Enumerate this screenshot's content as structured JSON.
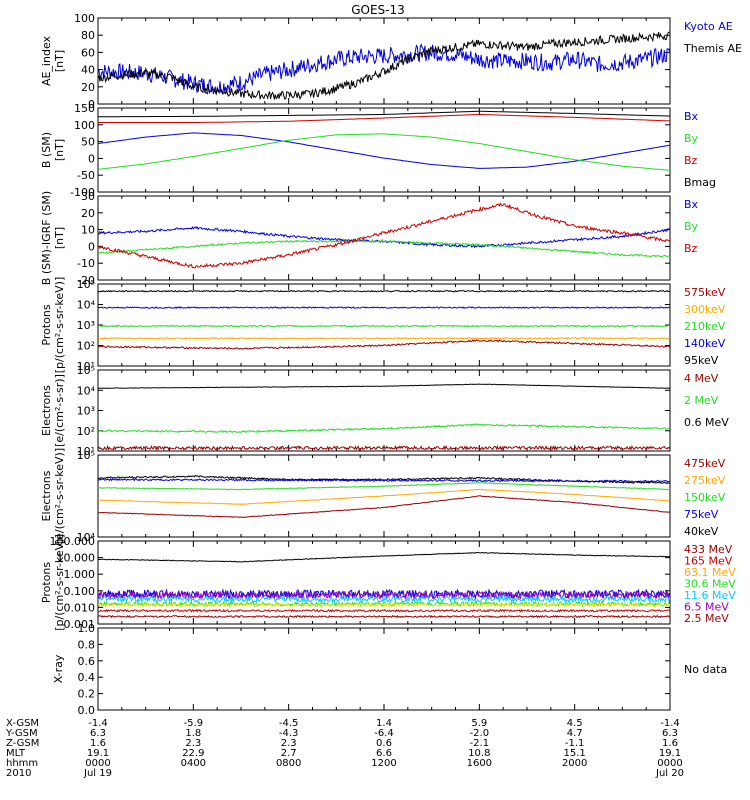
{
  "title": "GOES-13",
  "colors": {
    "black": "#000000",
    "blue": "#0000dd",
    "red": "#cc0000",
    "green": "#22dd22",
    "orange": "#ffaa00",
    "darkred": "#990000",
    "cyan": "#00ccff",
    "yellow": "#eeee00",
    "purple": "#9900cc"
  },
  "chart_data": [
    {
      "type": "line",
      "ylabel": [
        "AE_index",
        "[nT]"
      ],
      "ylim": [
        0,
        100
      ],
      "yticks": [
        "0",
        "20",
        "40",
        "60",
        "80",
        "100"
      ],
      "legend": [
        {
          "label": "Kyoto AE",
          "color": "#0000dd"
        },
        {
          "label": "Themis AE",
          "color": "#000000"
        }
      ],
      "series": [
        {
          "name": "Kyoto AE",
          "color": "#0000dd",
          "x": [
            0,
            1,
            2,
            3,
            4,
            5,
            6,
            7,
            8,
            9,
            10,
            11,
            12,
            13,
            14,
            15,
            16,
            17,
            18,
            19,
            20,
            21,
            22,
            23,
            24
          ],
          "values": [
            38,
            37,
            36,
            30,
            24,
            20,
            25,
            34,
            40,
            46,
            52,
            55,
            56,
            58,
            60,
            58,
            52,
            50,
            50,
            48,
            52,
            46,
            48,
            52,
            58
          ],
          "noise": 10
        },
        {
          "name": "Themis AE",
          "color": "#000000",
          "x": [
            0,
            1,
            2,
            3,
            4,
            5,
            6,
            7,
            8,
            9,
            10,
            11,
            12,
            13,
            14,
            15,
            16,
            17,
            18,
            19,
            20,
            21,
            22,
            23,
            24
          ],
          "values": [
            30,
            34,
            36,
            32,
            20,
            16,
            12,
            10,
            10,
            12,
            18,
            26,
            38,
            52,
            62,
            66,
            70,
            68,
            66,
            70,
            72,
            74,
            76,
            78,
            80
          ],
          "noise": 5
        }
      ]
    },
    {
      "type": "line",
      "ylabel": [
        "B (SM)",
        "[nT]"
      ],
      "ylim": [
        -125,
        135
      ],
      "yticks": [
        "-100",
        "-50",
        "0",
        "50",
        "100",
        "150"
      ],
      "legend": [
        {
          "label": "Bx",
          "color": "#0000dd"
        },
        {
          "label": "By",
          "color": "#22dd22"
        },
        {
          "label": "Bz",
          "color": "#cc0000"
        },
        {
          "label": "Bmag",
          "color": "#000000"
        }
      ],
      "series": [
        {
          "name": "Bmag",
          "color": "#000000",
          "x": [
            0,
            4,
            8,
            12,
            16,
            20,
            24
          ],
          "values": [
            108,
            109,
            112,
            115,
            125,
            118,
            110
          ],
          "noise": 0
        },
        {
          "name": "Bz",
          "color": "#cc0000",
          "x": [
            0,
            4,
            8,
            12,
            16,
            20,
            24
          ],
          "values": [
            90,
            90,
            94,
            104,
            115,
            106,
            95
          ],
          "noise": 0
        },
        {
          "name": "Bx",
          "color": "#0000dd",
          "x": [
            0,
            2,
            4,
            6,
            8,
            10,
            12,
            14,
            16,
            18,
            20,
            22,
            24
          ],
          "values": [
            25,
            45,
            58,
            50,
            30,
            5,
            -20,
            -40,
            -52,
            -48,
            -30,
            -5,
            20
          ],
          "noise": 0
        },
        {
          "name": "By",
          "color": "#22dd22",
          "x": [
            0,
            2,
            4,
            6,
            8,
            10,
            12,
            14,
            16,
            18,
            20,
            22,
            24
          ],
          "values": [
            -55,
            -38,
            -15,
            10,
            35,
            52,
            55,
            45,
            25,
            0,
            -25,
            -45,
            -58
          ],
          "noise": 0
        }
      ]
    },
    {
      "type": "line",
      "ylabel": [
        "B (SM)-IGRF (SM)",
        "[nT]"
      ],
      "ylim": [
        -20,
        30
      ],
      "yticks": [
        "-20",
        "-10",
        "0",
        "10",
        "20",
        "30"
      ],
      "legend": [
        {
          "label": "Bx",
          "color": "#0000dd"
        },
        {
          "label": "By",
          "color": "#22dd22"
        },
        {
          "label": "Bz",
          "color": "#cc0000"
        }
      ],
      "series": [
        {
          "name": "Bx",
          "color": "#0000dd",
          "x": [
            0,
            2,
            4,
            6,
            8,
            10,
            12,
            14,
            16,
            18,
            20,
            22,
            24
          ],
          "values": [
            8,
            9,
            11,
            9,
            6,
            4,
            3,
            1,
            0,
            2,
            4,
            6,
            10
          ],
          "noise": 0.7
        },
        {
          "name": "By",
          "color": "#22dd22",
          "x": [
            0,
            2,
            4,
            6,
            8,
            10,
            12,
            14,
            16,
            18,
            20,
            22,
            24
          ],
          "values": [
            -4,
            -2,
            0,
            2,
            3,
            3,
            3,
            2,
            1,
            -1,
            -3,
            -5,
            -6
          ],
          "noise": 0.5
        },
        {
          "name": "Bz",
          "color": "#cc0000",
          "x": [
            0,
            2,
            4,
            6,
            8,
            10,
            12,
            14,
            16,
            17,
            18,
            20,
            22,
            24
          ],
          "values": [
            0,
            -6,
            -12,
            -10,
            -5,
            1,
            8,
            15,
            22,
            25,
            20,
            12,
            8,
            3
          ],
          "noise": 1
        }
      ]
    },
    {
      "type": "line",
      "log": true,
      "ylabel": [
        "Protons",
        "[p/(cm²-s-sr-keV)]"
      ],
      "ylim": [
        1,
        5
      ],
      "yticks": [
        "10¹",
        "10²",
        "10³",
        "10⁴",
        "10⁵"
      ],
      "legend": [
        {
          "label": "575keV",
          "color": "#990000"
        },
        {
          "label": "300keV",
          "color": "#ffaa00"
        },
        {
          "label": "210keV",
          "color": "#22dd22"
        },
        {
          "label": "140keV",
          "color": "#0000dd"
        },
        {
          "label": "95keV",
          "color": "#000000"
        }
      ],
      "series": [
        {
          "name": "95keV",
          "color": "#000000",
          "x": [
            0,
            24
          ],
          "values": [
            4.65,
            4.65
          ],
          "noise": 0.03
        },
        {
          "name": "140keV",
          "color": "#0000dd",
          "x": [
            0,
            24
          ],
          "values": [
            3.85,
            3.85
          ],
          "noise": 0.03
        },
        {
          "name": "210keV",
          "color": "#22dd22",
          "x": [
            0,
            24
          ],
          "values": [
            2.95,
            2.95
          ],
          "noise": 0.03
        },
        {
          "name": "300keV",
          "color": "#ffaa00",
          "x": [
            0,
            24
          ],
          "values": [
            2.35,
            2.35
          ],
          "noise": 0.03
        },
        {
          "name": "575keV",
          "color": "#990000",
          "x": [
            0,
            6,
            12,
            16,
            20,
            24
          ],
          "values": [
            1.95,
            1.85,
            2.0,
            2.25,
            2.1,
            1.95
          ],
          "noise": 0.04
        }
      ]
    },
    {
      "type": "line",
      "log": true,
      "ylabel": [
        "Electrons",
        "[e/(cm²-s-sr)]"
      ],
      "ylim": [
        1,
        5
      ],
      "yticks": [
        "10¹",
        "10²",
        "10³",
        "10⁴",
        "10⁵"
      ],
      "legend": [
        {
          "label": "4 MeV",
          "color": "#990000"
        },
        {
          "label": "2 MeV",
          "color": "#22dd22"
        },
        {
          "label": "0.6 MeV",
          "color": "#000000"
        }
      ],
      "series": [
        {
          "name": "0.6 MeV",
          "color": "#000000",
          "x": [
            0,
            6,
            12,
            16,
            20,
            24
          ],
          "values": [
            4.1,
            4.15,
            4.2,
            4.3,
            4.2,
            4.1
          ],
          "noise": 0.01
        },
        {
          "name": "2 MeV",
          "color": "#22dd22",
          "x": [
            0,
            6,
            12,
            16,
            20,
            24
          ],
          "values": [
            2.0,
            1.95,
            2.1,
            2.3,
            2.2,
            2.1
          ],
          "noise": 0.04
        },
        {
          "name": "4 MeV",
          "color": "#990000",
          "x": [
            0,
            24
          ],
          "values": [
            1.15,
            1.15
          ],
          "noise": 0.08
        }
      ]
    },
    {
      "type": "line",
      "log": true,
      "ylabel": [
        "Electrons",
        "[e/(cm²-s-sr-keV)]"
      ],
      "ylim": [
        4,
        5
      ],
      "yticks": [
        "10⁴",
        "10⁵"
      ],
      "legend": [
        {
          "label": "475keV",
          "color": "#990000"
        },
        {
          "label": "275keV",
          "color": "#ffaa00"
        },
        {
          "label": "150keV",
          "color": "#22dd22"
        },
        {
          "label": "75keV",
          "color": "#0000dd"
        },
        {
          "label": "40keV",
          "color": "#000000"
        }
      ],
      "series": [
        {
          "name": "40keV",
          "color": "#000000",
          "x": [
            0,
            4,
            8,
            12,
            16,
            20,
            24
          ],
          "values": [
            4.72,
            4.74,
            4.7,
            4.7,
            4.72,
            4.68,
            4.66
          ],
          "noise": 0.01
        },
        {
          "name": "75keV",
          "color": "#0000dd",
          "x": [
            0,
            24
          ],
          "values": [
            4.7,
            4.68
          ],
          "noise": 0.01
        },
        {
          "name": "150keV",
          "color": "#22dd22",
          "x": [
            0,
            6,
            12,
            16,
            20,
            24
          ],
          "values": [
            4.6,
            4.58,
            4.62,
            4.66,
            4.62,
            4.58
          ],
          "noise": 0.004
        },
        {
          "name": "275keV",
          "color": "#ffaa00",
          "x": [
            0,
            6,
            12,
            16,
            20,
            24
          ],
          "values": [
            4.45,
            4.4,
            4.5,
            4.58,
            4.52,
            4.44
          ],
          "noise": 0.004
        },
        {
          "name": "475keV",
          "color": "#990000",
          "x": [
            0,
            6,
            12,
            16,
            20,
            24
          ],
          "values": [
            4.3,
            4.24,
            4.36,
            4.5,
            4.42,
            4.3
          ],
          "noise": 0.004
        }
      ]
    },
    {
      "type": "line",
      "log": true,
      "ylabel": [
        "Protons",
        "[p/(cm²-s-sr-keV)]"
      ],
      "ylim": [
        -3,
        2
      ],
      "yticks": [
        "0.001",
        "0.010",
        "0.100",
        "1.000",
        "10.000",
        "100.000"
      ],
      "legend": [
        {
          "label": "433 MeV",
          "color": "#990000"
        },
        {
          "label": "165 MeV",
          "color": "#cc0000"
        },
        {
          "label": "63.1 MeV",
          "color": "#ffaa00"
        },
        {
          "label": "30.6 MeV",
          "color": "#22dd22"
        },
        {
          "label": "11.6 MeV",
          "color": "#00ccff"
        },
        {
          "label": "6.5 MeV",
          "color": "#9900cc"
        },
        {
          "label": "2.5 MeV",
          "color": "#990000"
        }
      ],
      "series": [
        {
          "name": "11.6 MeV",
          "color": "#0000dd",
          "x": [
            0,
            24
          ],
          "values": [
            -1.2,
            -1.2
          ],
          "noise": 0.25
        },
        {
          "name": "6.5 MeV",
          "color": "#9900cc",
          "x": [
            0,
            24
          ],
          "values": [
            -1.25,
            -1.25
          ],
          "noise": 0.22
        },
        {
          "name": "30.6 MeV",
          "color": "#00ccff",
          "x": [
            0,
            24
          ],
          "values": [
            -1.5,
            -1.5
          ],
          "noise": 0.18
        },
        {
          "name": "63.1 MeV",
          "color": "#22dd22",
          "x": [
            0,
            24
          ],
          "values": [
            -1.8,
            -1.8
          ],
          "noise": 0.12
        },
        {
          "name": "165 MeV",
          "color": "#eeee00",
          "x": [
            0,
            24
          ],
          "values": [
            -1.85,
            -1.85
          ],
          "noise": 0.08
        },
        {
          "name": "433 MeV",
          "color": "#cc0000",
          "x": [
            0,
            24
          ],
          "values": [
            -2.2,
            -2.2
          ],
          "noise": 0.06
        },
        {
          "name": "2.5 MeV",
          "color": "#990000",
          "x": [
            0,
            24
          ],
          "values": [
            -2.55,
            -2.55
          ],
          "noise": 0.05
        },
        {
          "name": "433 MeV",
          "color": "#000000",
          "x": [
            0,
            6,
            12,
            16,
            20,
            24
          ],
          "values": [
            0.9,
            0.75,
            1.1,
            1.3,
            1.15,
            1.05
          ],
          "noise": 0.02
        }
      ]
    },
    {
      "type": "line",
      "ylabel": [
        "X-ray"
      ],
      "ylim": [
        0,
        1
      ],
      "yticks": [
        "0.0",
        "0.2",
        "0.4",
        "0.6",
        "0.8",
        "1.0"
      ],
      "legend": [
        {
          "label": "No data",
          "color": "#000000"
        }
      ],
      "series": []
    }
  ],
  "ephemeris": {
    "rows": [
      {
        "label": "X-GSM",
        "values": [
          "-1.4",
          "-5.9",
          "-4.5",
          "1.4",
          "5.9",
          "4.5",
          "-1.4"
        ]
      },
      {
        "label": "Y-GSM",
        "values": [
          "6.3",
          "1.8",
          "-4.3",
          "-6.4",
          "-2.0",
          "4.7",
          "6.3"
        ]
      },
      {
        "label": "Z-GSM",
        "values": [
          "1.6",
          "2.3",
          "2.3",
          "0.6",
          "-2.1",
          "-1.1",
          "1.6"
        ]
      },
      {
        "label": "MLT",
        "values": [
          "19.1",
          "22.9",
          "2.7",
          "6.6",
          "10.8",
          "15.1",
          "19.1"
        ]
      },
      {
        "label": "hhmm",
        "values": [
          "0000",
          "0400",
          "0800",
          "1200",
          "1600",
          "2000",
          "0000"
        ]
      },
      {
        "label": "2010",
        "values": [
          "Jul 19",
          "",
          "",
          "",
          "",
          "",
          "Jul 20"
        ]
      }
    ]
  }
}
